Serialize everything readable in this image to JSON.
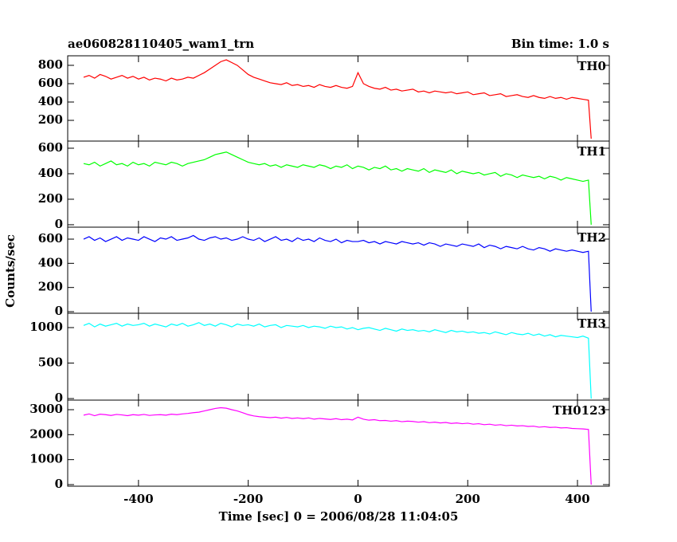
{
  "chart_data": [
    {
      "type": "line",
      "title": "ae060828110405_wam1_trn",
      "subtitle": "Bin time: 1.0 s",
      "ylabel": "Counts/sec",
      "x": [
        -500,
        -490,
        -480,
        -470,
        -460,
        -450,
        -440,
        -430,
        -420,
        -410,
        -400,
        -390,
        -380,
        -370,
        -360,
        -350,
        -340,
        -330,
        -320,
        -310,
        -300,
        -290,
        -280,
        -270,
        -260,
        -250,
        -240,
        -230,
        -220,
        -210,
        -200,
        -190,
        -180,
        -170,
        -160,
        -150,
        -140,
        -130,
        -120,
        -110,
        -100,
        -90,
        -80,
        -70,
        -60,
        -50,
        -40,
        -30,
        -20,
        -10,
        0,
        10,
        20,
        30,
        40,
        50,
        60,
        70,
        80,
        90,
        100,
        110,
        120,
        130,
        140,
        150,
        160,
        170,
        180,
        190,
        200,
        210,
        220,
        230,
        240,
        250,
        260,
        270,
        280,
        290,
        300,
        310,
        320,
        330,
        340,
        350,
        360,
        370,
        380,
        390,
        400,
        410,
        420,
        425
      ],
      "series": [
        {
          "name": "TH0",
          "color": "#ff0000",
          "values": [
            670,
            690,
            660,
            700,
            680,
            650,
            670,
            690,
            660,
            680,
            650,
            670,
            640,
            660,
            650,
            630,
            660,
            640,
            650,
            670,
            660,
            690,
            720,
            760,
            800,
            840,
            860,
            830,
            800,
            750,
            700,
            670,
            650,
            630,
            610,
            600,
            590,
            610,
            580,
            590,
            570,
            580,
            560,
            590,
            570,
            560,
            580,
            560,
            550,
            570,
            720,
            600,
            570,
            550,
            540,
            560,
            530,
            540,
            520,
            530,
            540,
            510,
            520,
            500,
            520,
            510,
            500,
            510,
            490,
            500,
            510,
            480,
            490,
            500,
            470,
            480,
            490,
            460,
            470,
            480,
            460,
            450,
            470,
            450,
            440,
            460,
            440,
            450,
            430,
            450,
            440,
            430,
            420,
            0
          ]
        }
      ],
      "xlim": [
        -529,
        458
      ],
      "xticks": [
        -400,
        -200,
        0,
        200,
        400
      ],
      "ylim": [
        -26,
        904
      ],
      "yticks": [
        200,
        400,
        600,
        800
      ]
    },
    {
      "type": "line",
      "x": [
        -500,
        -490,
        -480,
        -470,
        -460,
        -450,
        -440,
        -430,
        -420,
        -410,
        -400,
        -390,
        -380,
        -370,
        -360,
        -350,
        -340,
        -330,
        -320,
        -310,
        -300,
        -290,
        -280,
        -270,
        -260,
        -250,
        -240,
        -230,
        -220,
        -210,
        -200,
        -190,
        -180,
        -170,
        -160,
        -150,
        -140,
        -130,
        -120,
        -110,
        -100,
        -90,
        -80,
        -70,
        -60,
        -50,
        -40,
        -30,
        -20,
        -10,
        0,
        10,
        20,
        30,
        40,
        50,
        60,
        70,
        80,
        90,
        100,
        110,
        120,
        130,
        140,
        150,
        160,
        170,
        180,
        190,
        200,
        210,
        220,
        230,
        240,
        250,
        260,
        270,
        280,
        290,
        300,
        310,
        320,
        330,
        340,
        350,
        360,
        370,
        380,
        390,
        400,
        410,
        420,
        425
      ],
      "series": [
        {
          "name": "TH1",
          "color": "#00ff00",
          "values": [
            480,
            470,
            490,
            460,
            480,
            500,
            470,
            480,
            460,
            490,
            470,
            480,
            460,
            490,
            480,
            470,
            490,
            480,
            460,
            480,
            490,
            500,
            510,
            530,
            550,
            560,
            570,
            550,
            530,
            510,
            490,
            480,
            470,
            480,
            460,
            470,
            450,
            470,
            460,
            450,
            470,
            460,
            450,
            470,
            460,
            440,
            460,
            450,
            470,
            440,
            460,
            450,
            430,
            450,
            440,
            460,
            430,
            440,
            420,
            440,
            430,
            420,
            440,
            410,
            430,
            420,
            410,
            430,
            400,
            420,
            410,
            400,
            410,
            390,
            400,
            410,
            380,
            400,
            390,
            370,
            390,
            380,
            370,
            380,
            360,
            380,
            370,
            350,
            370,
            360,
            350,
            340,
            350,
            0
          ]
        }
      ],
      "xlim": [
        -529,
        458
      ],
      "xticks": [
        -400,
        -200,
        0,
        200,
        400
      ],
      "ylim": [
        -19,
        656
      ],
      "yticks": [
        0,
        200,
        400,
        600
      ]
    },
    {
      "type": "line",
      "x": [
        -500,
        -490,
        -480,
        -470,
        -460,
        -450,
        -440,
        -430,
        -420,
        -410,
        -400,
        -390,
        -380,
        -370,
        -360,
        -350,
        -340,
        -330,
        -320,
        -310,
        -300,
        -290,
        -280,
        -270,
        -260,
        -250,
        -240,
        -230,
        -220,
        -210,
        -200,
        -190,
        -180,
        -170,
        -160,
        -150,
        -140,
        -130,
        -120,
        -110,
        -100,
        -90,
        -80,
        -70,
        -60,
        -50,
        -40,
        -30,
        -20,
        -10,
        0,
        10,
        20,
        30,
        40,
        50,
        60,
        70,
        80,
        90,
        100,
        110,
        120,
        130,
        140,
        150,
        160,
        170,
        180,
        190,
        200,
        210,
        220,
        230,
        240,
        250,
        260,
        270,
        280,
        290,
        300,
        310,
        320,
        330,
        340,
        350,
        360,
        370,
        380,
        390,
        400,
        410,
        420,
        425
      ],
      "series": [
        {
          "name": "TH2",
          "color": "#0000ff",
          "values": [
            600,
            620,
            590,
            610,
            580,
            600,
            620,
            590,
            610,
            600,
            590,
            620,
            600,
            580,
            610,
            600,
            620,
            590,
            600,
            610,
            630,
            600,
            590,
            610,
            620,
            600,
            610,
            590,
            600,
            620,
            600,
            590,
            610,
            580,
            600,
            620,
            590,
            600,
            580,
            610,
            590,
            600,
            580,
            610,
            590,
            580,
            600,
            570,
            590,
            580,
            580,
            590,
            570,
            580,
            560,
            580,
            570,
            560,
            580,
            570,
            560,
            570,
            550,
            570,
            560,
            540,
            560,
            550,
            540,
            560,
            550,
            540,
            560,
            530,
            550,
            540,
            520,
            540,
            530,
            520,
            540,
            520,
            510,
            530,
            520,
            500,
            520,
            510,
            500,
            510,
            500,
            490,
            500,
            0
          ]
        }
      ],
      "xlim": [
        -529,
        458
      ],
      "xticks": [
        -400,
        -200,
        0,
        200,
        400
      ],
      "ylim": [
        -13,
        699
      ],
      "yticks": [
        0,
        200,
        400,
        600
      ]
    },
    {
      "type": "line",
      "x": [
        -500,
        -490,
        -480,
        -470,
        -460,
        -450,
        -440,
        -430,
        -420,
        -410,
        -400,
        -390,
        -380,
        -370,
        -360,
        -350,
        -340,
        -330,
        -320,
        -310,
        -300,
        -290,
        -280,
        -270,
        -260,
        -250,
        -240,
        -230,
        -220,
        -210,
        -200,
        -190,
        -180,
        -170,
        -160,
        -150,
        -140,
        -130,
        -120,
        -110,
        -100,
        -90,
        -80,
        -70,
        -60,
        -50,
        -40,
        -30,
        -20,
        -10,
        0,
        10,
        20,
        30,
        40,
        50,
        60,
        70,
        80,
        90,
        100,
        110,
        120,
        130,
        140,
        150,
        160,
        170,
        180,
        190,
        200,
        210,
        220,
        230,
        240,
        250,
        260,
        270,
        280,
        290,
        300,
        310,
        320,
        330,
        340,
        350,
        360,
        370,
        380,
        390,
        400,
        410,
        420,
        425
      ],
      "series": [
        {
          "name": "TH3",
          "color": "#00ffff",
          "values": [
            1030,
            1060,
            1010,
            1050,
            1020,
            1040,
            1060,
            1020,
            1050,
            1030,
            1040,
            1060,
            1020,
            1050,
            1030,
            1010,
            1050,
            1030,
            1060,
            1020,
            1040,
            1070,
            1030,
            1050,
            1020,
            1060,
            1040,
            1010,
            1050,
            1030,
            1040,
            1020,
            1050,
            1010,
            1030,
            1040,
            1000,
            1030,
            1020,
            1010,
            1030,
            1000,
            1020,
            1010,
            990,
            1020,
            1000,
            1010,
            980,
            1000,
            970,
            990,
            1000,
            980,
            960,
            990,
            970,
            950,
            980,
            960,
            970,
            950,
            960,
            940,
            970,
            950,
            930,
            960,
            940,
            950,
            930,
            940,
            920,
            930,
            910,
            940,
            920,
            900,
            930,
            910,
            900,
            920,
            890,
            910,
            880,
            900,
            870,
            890,
            880,
            870,
            860,
            880,
            850,
            0
          ]
        }
      ],
      "xlim": [
        -529,
        458
      ],
      "xticks": [
        -400,
        -200,
        0,
        200,
        400
      ],
      "ylim": [
        -22,
        1202
      ],
      "yticks": [
        0,
        500,
        1000
      ]
    },
    {
      "type": "line",
      "xlabel": "Time [sec] 0 = 2006/08/28 11:04:05",
      "x": [
        -500,
        -490,
        -480,
        -470,
        -460,
        -450,
        -440,
        -430,
        -420,
        -410,
        -400,
        -390,
        -380,
        -370,
        -360,
        -350,
        -340,
        -330,
        -320,
        -310,
        -300,
        -290,
        -280,
        -270,
        -260,
        -250,
        -240,
        -230,
        -220,
        -210,
        -200,
        -190,
        -180,
        -170,
        -160,
        -150,
        -140,
        -130,
        -120,
        -110,
        -100,
        -90,
        -80,
        -70,
        -60,
        -50,
        -40,
        -30,
        -20,
        -10,
        0,
        10,
        20,
        30,
        40,
        50,
        60,
        70,
        80,
        90,
        100,
        110,
        120,
        130,
        140,
        150,
        160,
        170,
        180,
        190,
        200,
        210,
        220,
        230,
        240,
        250,
        260,
        270,
        280,
        290,
        300,
        310,
        320,
        330,
        340,
        350,
        360,
        370,
        380,
        390,
        400,
        410,
        420,
        425
      ],
      "series": [
        {
          "name": "TH0123",
          "color": "#ff00ff",
          "values": [
            2780,
            2830,
            2760,
            2820,
            2800,
            2770,
            2810,
            2790,
            2760,
            2800,
            2780,
            2810,
            2770,
            2790,
            2800,
            2780,
            2820,
            2800,
            2830,
            2850,
            2880,
            2900,
            2950,
            3000,
            3050,
            3080,
            3060,
            3000,
            2950,
            2880,
            2800,
            2750,
            2720,
            2700,
            2680,
            2700,
            2660,
            2690,
            2650,
            2670,
            2640,
            2670,
            2620,
            2650,
            2630,
            2610,
            2640,
            2600,
            2620,
            2590,
            2700,
            2620,
            2580,
            2600,
            2560,
            2570,
            2540,
            2560,
            2520,
            2540,
            2530,
            2500,
            2520,
            2480,
            2500,
            2470,
            2490,
            2450,
            2470,
            2440,
            2460,
            2420,
            2440,
            2400,
            2420,
            2380,
            2400,
            2360,
            2380,
            2350,
            2360,
            2330,
            2340,
            2300,
            2320,
            2290,
            2300,
            2270,
            2280,
            2250,
            2240,
            2230,
            2210,
            0
          ]
        }
      ],
      "xlim": [
        -529,
        458
      ],
      "xticks": [
        -400,
        -200,
        0,
        200,
        400
      ],
      "ylim": [
        -64,
        3383
      ],
      "yticks": [
        0,
        1000,
        2000,
        3000
      ]
    }
  ]
}
